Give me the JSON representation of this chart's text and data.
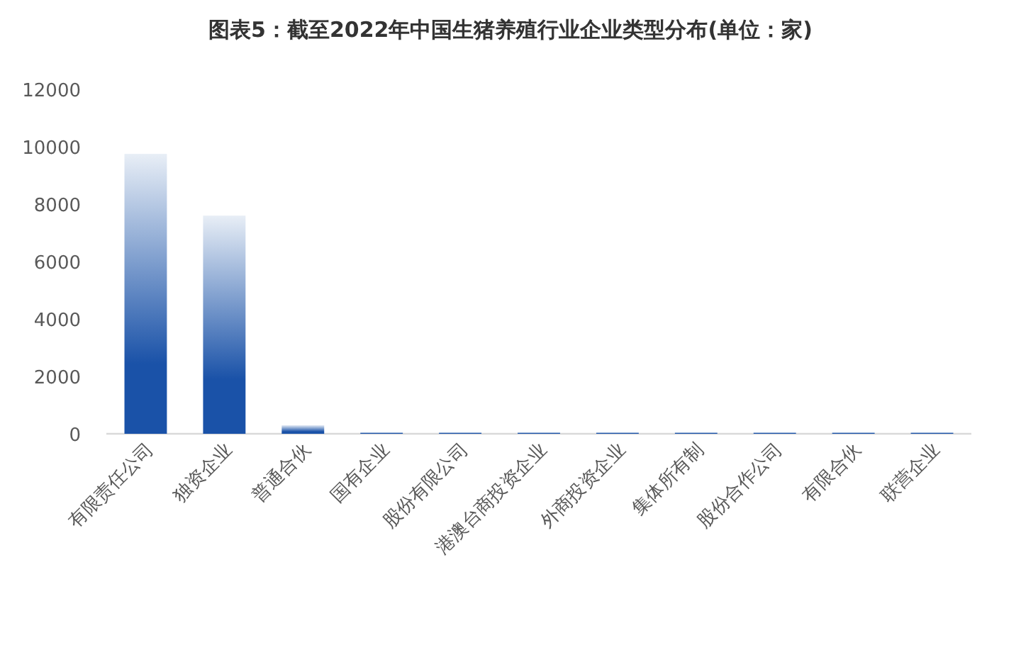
{
  "chart_data": {
    "type": "bar",
    "title": "图表5：截至2022年中国生猪养殖行业企业类型分布(单位：家)",
    "categories": [
      "有限责任公司",
      "独资企业",
      "普通合伙",
      "国有企业",
      "股份有限公司",
      "港澳台商投资企业",
      "外商投资企业",
      "集体所有制",
      "股份合作公司",
      "有限合伙",
      "联营企业"
    ],
    "values": [
      9750,
      7600,
      300,
      50,
      50,
      50,
      50,
      50,
      50,
      50,
      50
    ],
    "color": "#1a52a8",
    "ylim": [
      0,
      12000
    ],
    "yticks": [
      0,
      2000,
      4000,
      6000,
      8000,
      10000,
      12000
    ]
  }
}
